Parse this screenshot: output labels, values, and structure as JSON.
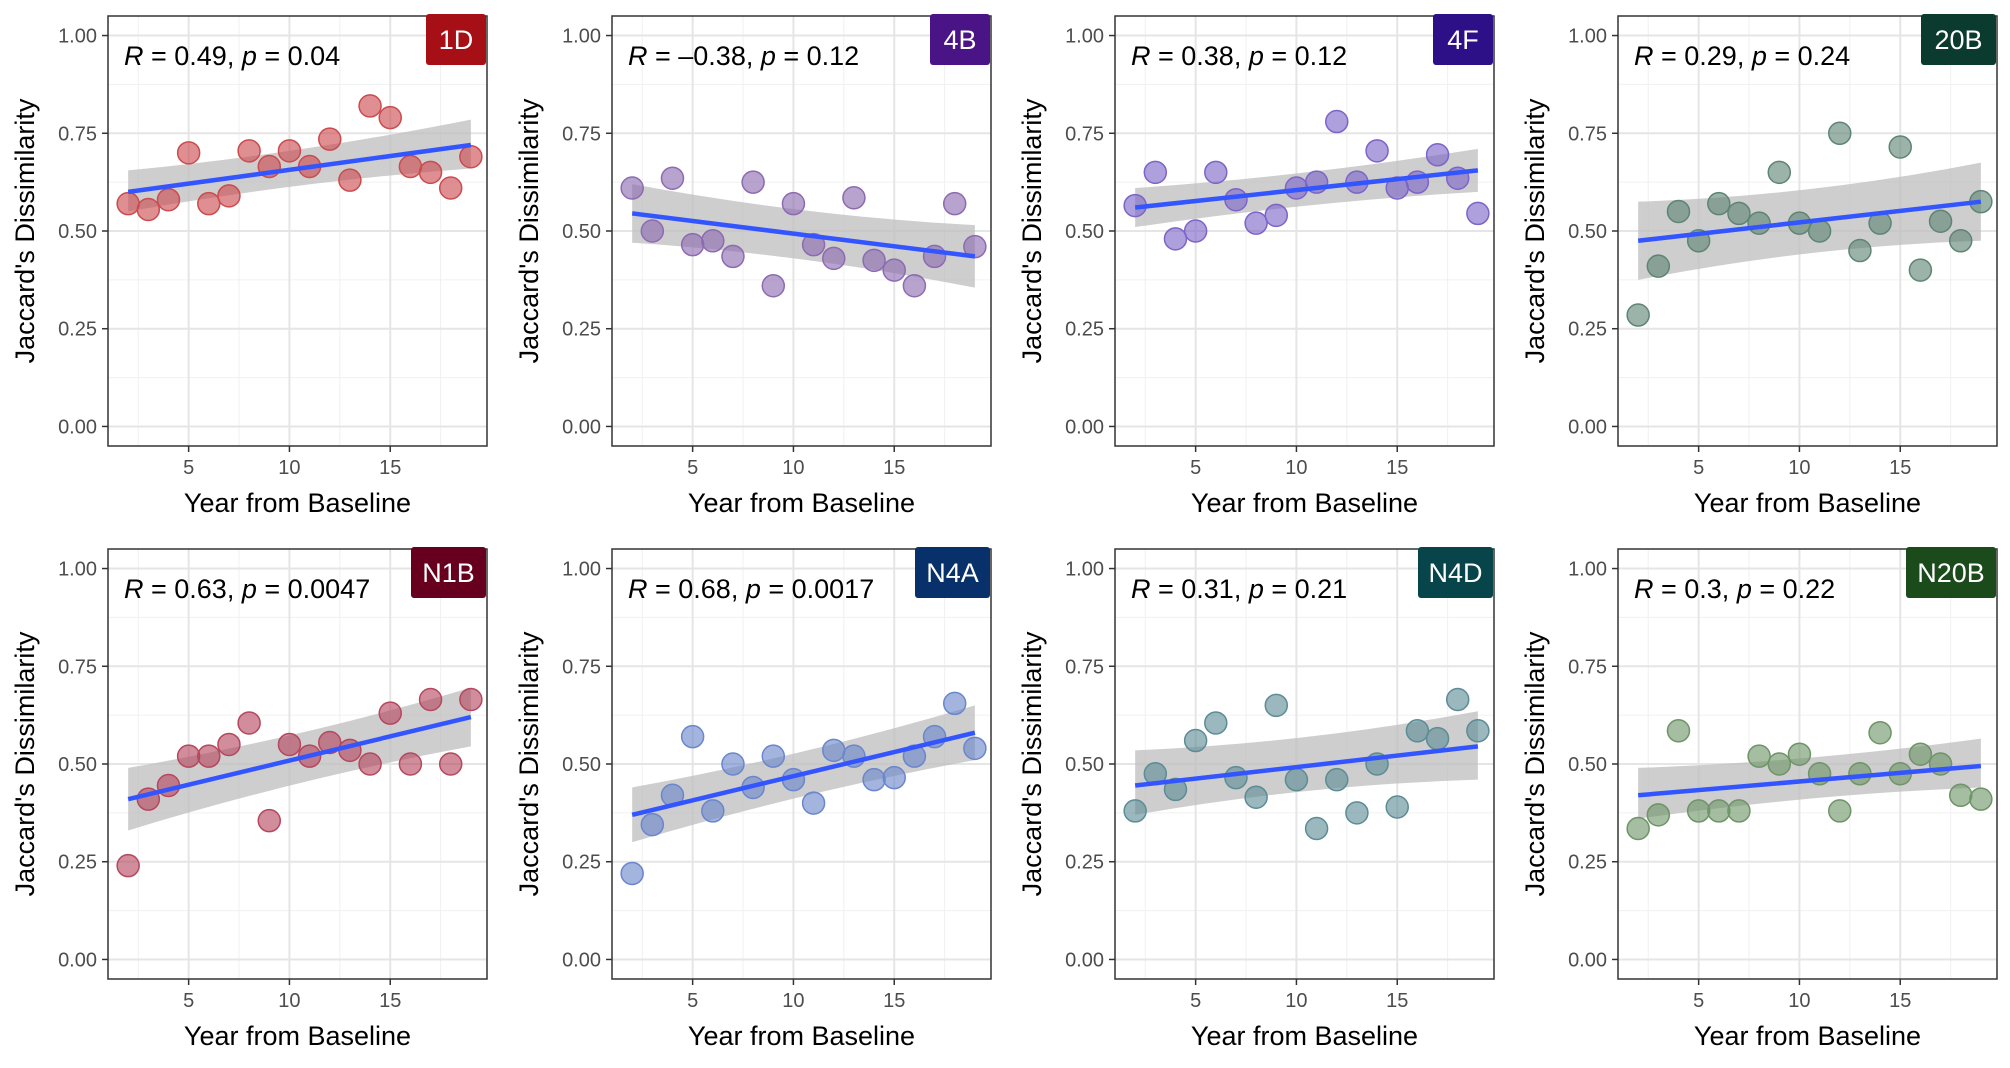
{
  "chart_data": [
    {
      "type": "scatter",
      "panel_label": "1D",
      "label_color": "#A50F15",
      "point_color": "#CB4B4E",
      "annotation": {
        "r": "0.49",
        "p": "0.04"
      },
      "xlabel": "Year from Baseline",
      "ylabel": "Jaccard's Dissimilarity",
      "xlim": [
        1,
        19.8
      ],
      "ylim": [
        -0.05,
        1.05
      ],
      "x_ticks": [
        "5",
        "10",
        "15"
      ],
      "y_ticks": [
        "0.00",
        "0.25",
        "0.50",
        "0.75",
        "1.00"
      ],
      "x": [
        2,
        3,
        4,
        5,
        6,
        7,
        8,
        9,
        10,
        11,
        12,
        13,
        14,
        15,
        16,
        17,
        18,
        19
      ],
      "y": [
        0.57,
        0.555,
        0.58,
        0.7,
        0.57,
        0.59,
        0.705,
        0.665,
        0.705,
        0.665,
        0.735,
        0.63,
        0.82,
        0.79,
        0.665,
        0.65,
        0.61,
        0.69
      ],
      "trend": {
        "start": 0.6,
        "end": 0.72,
        "band_start": [
          0.55,
          0.655
        ],
        "band_end": [
          0.66,
          0.785
        ]
      }
    },
    {
      "type": "scatter",
      "panel_label": "4B",
      "label_color": "#4A1486",
      "point_color": "#8C6BB1",
      "annotation": {
        "r": "–0.38",
        "p": "0.12"
      },
      "xlabel": "Year from Baseline",
      "ylabel": "Jaccard's Dissimilarity",
      "xlim": [
        1,
        19.8
      ],
      "ylim": [
        -0.05,
        1.05
      ],
      "x_ticks": [
        "5",
        "10",
        "15"
      ],
      "y_ticks": [
        "0.00",
        "0.25",
        "0.50",
        "0.75",
        "1.00"
      ],
      "x": [
        2,
        3,
        4,
        5,
        6,
        7,
        8,
        9,
        10,
        11,
        12,
        13,
        14,
        15,
        16,
        17,
        18,
        19
      ],
      "y": [
        0.61,
        0.5,
        0.635,
        0.465,
        0.475,
        0.435,
        0.625,
        0.36,
        0.57,
        0.465,
        0.43,
        0.585,
        0.425,
        0.4,
        0.36,
        0.435,
        0.57,
        0.46
      ],
      "trend": {
        "start": 0.545,
        "end": 0.435,
        "band_start": [
          0.47,
          0.62
        ],
        "band_end": [
          0.355,
          0.515
        ]
      }
    },
    {
      "type": "scatter",
      "panel_label": "4F",
      "label_color": "#2D0F87",
      "point_color": "#7D64C8",
      "annotation": {
        "r": "0.38",
        "p": "0.12"
      },
      "xlabel": "Year from Baseline",
      "ylabel": "Jaccard's Dissimilarity",
      "xlim": [
        1,
        19.8
      ],
      "ylim": [
        -0.05,
        1.05
      ],
      "x_ticks": [
        "5",
        "10",
        "15"
      ],
      "y_ticks": [
        "0.00",
        "0.25",
        "0.50",
        "0.75",
        "1.00"
      ],
      "x": [
        2,
        3,
        4,
        5,
        6,
        7,
        8,
        9,
        10,
        11,
        12,
        13,
        14,
        15,
        16,
        17,
        18,
        19
      ],
      "y": [
        0.565,
        0.65,
        0.48,
        0.5,
        0.65,
        0.58,
        0.52,
        0.54,
        0.61,
        0.625,
        0.78,
        0.625,
        0.705,
        0.61,
        0.625,
        0.695,
        0.635,
        0.545
      ],
      "trend": {
        "start": 0.56,
        "end": 0.655,
        "band_start": [
          0.51,
          0.61
        ],
        "band_end": [
          0.6,
          0.71
        ]
      }
    },
    {
      "type": "scatter",
      "panel_label": "20B",
      "label_color": "#0B3B2E",
      "point_color": "#5E8574",
      "annotation": {
        "r": "0.29",
        "p": "0.24"
      },
      "xlabel": "Year from Baseline",
      "ylabel": "Jaccard's Dissimilarity",
      "xlim": [
        1,
        19.8
      ],
      "ylim": [
        -0.05,
        1.05
      ],
      "x_ticks": [
        "5",
        "10",
        "15"
      ],
      "y_ticks": [
        "0.00",
        "0.25",
        "0.50",
        "0.75",
        "1.00"
      ],
      "x": [
        2,
        3,
        4,
        5,
        6,
        7,
        8,
        9,
        10,
        11,
        12,
        13,
        14,
        15,
        16,
        17,
        18,
        19
      ],
      "y": [
        0.285,
        0.41,
        0.55,
        0.475,
        0.57,
        0.545,
        0.52,
        0.65,
        0.52,
        0.5,
        0.75,
        0.45,
        0.52,
        0.715,
        0.4,
        0.525,
        0.475,
        0.575
      ],
      "trend": {
        "start": 0.475,
        "end": 0.575,
        "band_start": [
          0.375,
          0.575
        ],
        "band_end": [
          0.475,
          0.675
        ]
      }
    },
    {
      "type": "scatter",
      "panel_label": "N1B",
      "label_color": "#67001F",
      "point_color": "#B5475E",
      "annotation": {
        "r": "0.63",
        "p": "0.0047"
      },
      "xlabel": "Year from Baseline",
      "ylabel": "Jaccard's Dissimilarity",
      "xlim": [
        1,
        19.8
      ],
      "ylim": [
        -0.05,
        1.05
      ],
      "x_ticks": [
        "5",
        "10",
        "15"
      ],
      "y_ticks": [
        "0.00",
        "0.25",
        "0.50",
        "0.75",
        "1.00"
      ],
      "x": [
        2,
        3,
        4,
        5,
        6,
        7,
        8,
        9,
        10,
        11,
        12,
        13,
        14,
        15,
        16,
        17,
        18,
        19
      ],
      "y": [
        0.24,
        0.41,
        0.445,
        0.52,
        0.52,
        0.55,
        0.605,
        0.355,
        0.55,
        0.52,
        0.555,
        0.535,
        0.5,
        0.63,
        0.5,
        0.665,
        0.5,
        0.665
      ],
      "trend": {
        "start": 0.41,
        "end": 0.62,
        "band_start": [
          0.33,
          0.49
        ],
        "band_end": [
          0.545,
          0.695
        ]
      }
    },
    {
      "type": "scatter",
      "panel_label": "N4A",
      "label_color": "#08306B",
      "point_color": "#6A86CC",
      "annotation": {
        "r": "0.68",
        "p": "0.0017"
      },
      "xlabel": "Year from Baseline",
      "ylabel": "Jaccard's Dissimilarity",
      "xlim": [
        1,
        19.8
      ],
      "ylim": [
        -0.05,
        1.05
      ],
      "x_ticks": [
        "5",
        "10",
        "15"
      ],
      "y_ticks": [
        "0.00",
        "0.25",
        "0.50",
        "0.75",
        "1.00"
      ],
      "x": [
        2,
        3,
        4,
        5,
        6,
        7,
        8,
        9,
        10,
        11,
        12,
        13,
        14,
        15,
        16,
        17,
        18,
        19
      ],
      "y": [
        0.22,
        0.345,
        0.42,
        0.57,
        0.38,
        0.5,
        0.44,
        0.52,
        0.46,
        0.4,
        0.535,
        0.52,
        0.46,
        0.465,
        0.52,
        0.57,
        0.655,
        0.54
      ],
      "trend": {
        "start": 0.37,
        "end": 0.58,
        "band_start": [
          0.3,
          0.44
        ],
        "band_end": [
          0.51,
          0.65
        ]
      }
    },
    {
      "type": "scatter",
      "panel_label": "N4D",
      "label_color": "#08454A",
      "point_color": "#5C8C94",
      "annotation": {
        "r": "0.31",
        "p": "0.21"
      },
      "xlabel": "Year from Baseline",
      "ylabel": "Jaccard's Dissimilarity",
      "xlim": [
        1,
        19.8
      ],
      "ylim": [
        -0.05,
        1.05
      ],
      "x_ticks": [
        "5",
        "10",
        "15"
      ],
      "y_ticks": [
        "0.00",
        "0.25",
        "0.50",
        "0.75",
        "1.00"
      ],
      "x": [
        2,
        3,
        4,
        5,
        6,
        7,
        8,
        9,
        10,
        11,
        12,
        13,
        14,
        15,
        16,
        17,
        18,
        19
      ],
      "y": [
        0.38,
        0.475,
        0.435,
        0.56,
        0.605,
        0.465,
        0.415,
        0.65,
        0.46,
        0.335,
        0.46,
        0.375,
        0.5,
        0.39,
        0.585,
        0.565,
        0.665,
        0.585
      ],
      "trend": {
        "start": 0.445,
        "end": 0.545,
        "band_start": [
          0.37,
          0.535
        ],
        "band_end": [
          0.46,
          0.635
        ]
      }
    },
    {
      "type": "scatter",
      "panel_label": "N20B",
      "label_color": "#1B4A1B",
      "point_color": "#6E9468",
      "annotation": {
        "r": "0.3",
        "p": "0.22"
      },
      "xlabel": "Year from Baseline",
      "ylabel": "Jaccard's Dissimilarity",
      "xlim": [
        1,
        19.8
      ],
      "ylim": [
        -0.05,
        1.05
      ],
      "x_ticks": [
        "5",
        "10",
        "15"
      ],
      "y_ticks": [
        "0.00",
        "0.25",
        "0.50",
        "0.75",
        "1.00"
      ],
      "x": [
        2,
        3,
        4,
        5,
        6,
        7,
        8,
        9,
        10,
        11,
        12,
        13,
        14,
        15,
        16,
        17,
        18,
        19
      ],
      "y": [
        0.335,
        0.37,
        0.585,
        0.38,
        0.38,
        0.38,
        0.52,
        0.5,
        0.525,
        0.475,
        0.38,
        0.475,
        0.58,
        0.475,
        0.525,
        0.5,
        0.42,
        0.41
      ],
      "trend": {
        "start": 0.42,
        "end": 0.495,
        "band_start": [
          0.36,
          0.49
        ],
        "band_end": [
          0.44,
          0.565
        ]
      }
    }
  ],
  "colors": {
    "trend_line": "#3355FF",
    "ribbon": "#BEBEBE",
    "grid": "#E5E5E5",
    "panel_border": "#333333"
  }
}
